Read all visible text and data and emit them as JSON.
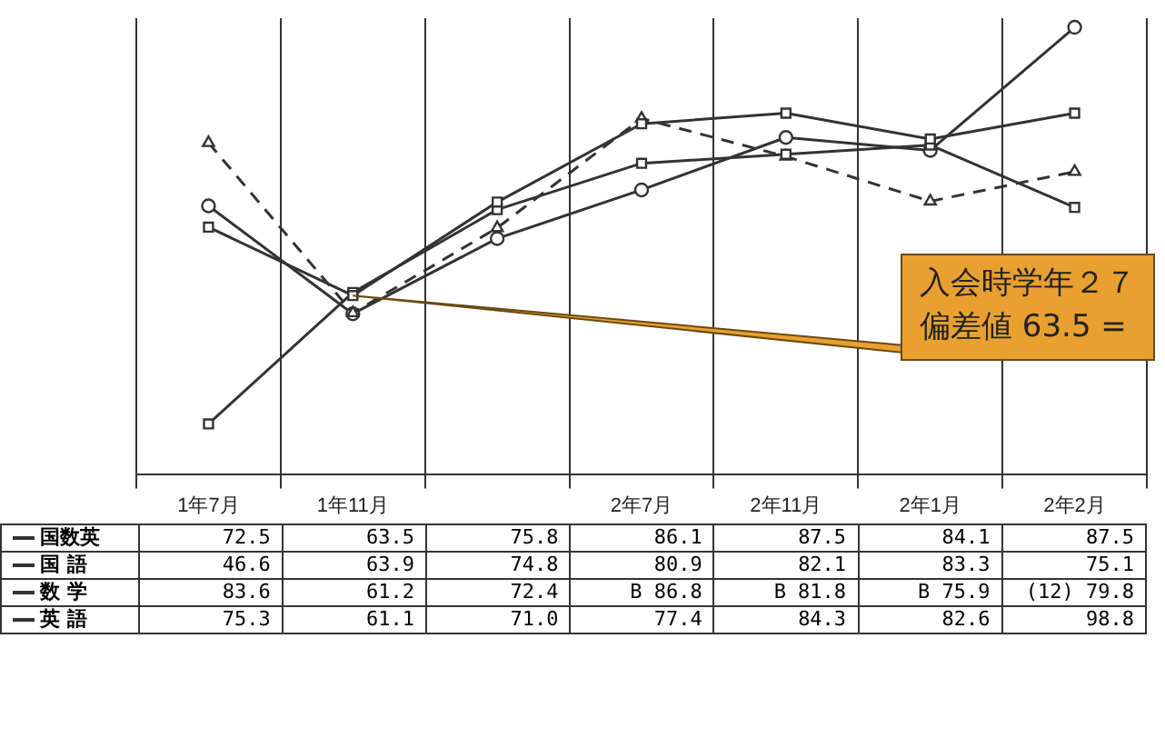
{
  "chart_data": {
    "type": "line",
    "categories": [
      "1年7月",
      "1年11月",
      null,
      "2年7月",
      "2年11月",
      "2年1月",
      "2年2月"
    ],
    "series": [
      {
        "name": "国数英",
        "color": "#333333",
        "marker": "square",
        "line_style": "solid",
        "values": [
          72.5,
          63.5,
          75.8,
          86.1,
          87.5,
          84.1,
          87.5
        ],
        "value_labels": [
          "72.5",
          "63.5",
          "75.8",
          "86.1",
          "87.5",
          "84.1",
          "87.5"
        ]
      },
      {
        "name": "国 語",
        "color": "#333333",
        "marker": "square",
        "line_style": "solid",
        "values": [
          46.6,
          63.9,
          74.8,
          80.9,
          82.1,
          83.3,
          75.1
        ],
        "value_labels": [
          "46.6",
          "63.9",
          "74.8",
          "80.9",
          "82.1",
          "83.3",
          "75.1"
        ]
      },
      {
        "name": "数 学",
        "color": "#333333",
        "marker": "triangle",
        "line_style": "dashed",
        "values": [
          83.6,
          61.2,
          72.4,
          86.8,
          81.8,
          75.9,
          79.8
        ],
        "value_labels": [
          "83.6",
          "61.2",
          "72.4",
          "B 86.8",
          "B 81.8",
          "B 75.9",
          "(12) 79.8"
        ]
      },
      {
        "name": "英 語",
        "color": "#333333",
        "marker": "circle",
        "line_style": "solid",
        "values": [
          75.3,
          61.1,
          71.0,
          77.4,
          84.3,
          82.6,
          98.8
        ],
        "value_labels": [
          "75.3",
          "61.1",
          "71.0",
          "77.4",
          "84.3",
          "82.6",
          "98.8"
        ]
      }
    ],
    "grid": "x",
    "legend": "bottom left",
    "tick_labels": "x",
    "annotations": [
      {
        "text": "入会時学年２７偏差値 63.5 =",
        "x": "1年11月",
        "y": 63.5
      }
    ]
  }
}
